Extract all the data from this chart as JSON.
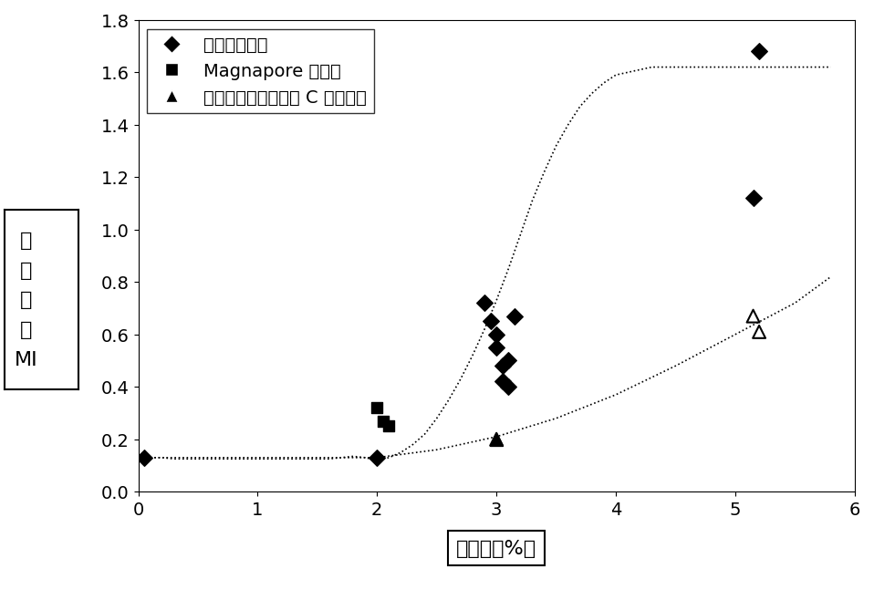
{
  "title": "",
  "xlabel": "钛含量（%）",
  "ylabel": "熔\n融\n指\n数\nMI",
  "xlim": [
    0,
    6
  ],
  "ylim": [
    0.0,
    1.8
  ],
  "yticks": [
    0.0,
    0.2,
    0.4,
    0.6,
    0.8,
    1.0,
    1.2,
    1.4,
    1.6,
    1.8
  ],
  "xticks": [
    0,
    1,
    2,
    3,
    4,
    5,
    6
  ],
  "series1_scatter_x": [
    0.05,
    2.0,
    2.9,
    2.95,
    3.0,
    3.0,
    3.05,
    3.05,
    3.1,
    3.1,
    3.15,
    5.2,
    5.15
  ],
  "series1_scatter_y": [
    0.13,
    0.13,
    0.72,
    0.65,
    0.6,
    0.55,
    0.48,
    0.42,
    0.4,
    0.5,
    0.67,
    1.68,
    1.12
  ],
  "series1_curve_x": [
    0.0,
    0.1,
    0.2,
    0.3,
    0.4,
    0.5,
    0.6,
    0.7,
    0.8,
    0.9,
    1.0,
    1.1,
    1.2,
    1.3,
    1.4,
    1.5,
    1.6,
    1.7,
    1.8,
    1.9,
    2.0,
    2.1,
    2.2,
    2.3,
    2.4,
    2.5,
    2.6,
    2.7,
    2.8,
    2.9,
    3.0,
    3.1,
    3.2,
    3.3,
    3.4,
    3.5,
    3.6,
    3.7,
    3.8,
    3.9,
    4.0,
    4.1,
    4.2,
    4.3,
    4.4,
    4.5,
    4.6,
    4.7,
    4.8,
    4.9,
    5.0,
    5.1,
    5.2,
    5.3,
    5.4,
    5.5,
    5.6,
    5.7,
    5.8
  ],
  "series1_curve_y": [
    0.13,
    0.13,
    0.13,
    0.125,
    0.125,
    0.125,
    0.125,
    0.125,
    0.125,
    0.125,
    0.125,
    0.125,
    0.125,
    0.125,
    0.125,
    0.125,
    0.125,
    0.13,
    0.135,
    0.13,
    0.12,
    0.13,
    0.15,
    0.18,
    0.22,
    0.28,
    0.35,
    0.43,
    0.52,
    0.62,
    0.73,
    0.85,
    0.98,
    1.11,
    1.22,
    1.32,
    1.4,
    1.47,
    1.52,
    1.56,
    1.59,
    1.6,
    1.61,
    1.62,
    1.62,
    1.62,
    1.62,
    1.62,
    1.62,
    1.62,
    1.62,
    1.62,
    1.62,
    1.62,
    1.62,
    1.62,
    1.62,
    1.62,
    1.62
  ],
  "series2_scatter_x": [
    2.0,
    2.05,
    2.1
  ],
  "series2_scatter_y": [
    0.32,
    0.27,
    0.25
  ],
  "series2_curve_x": [
    0.0,
    0.5,
    1.0,
    1.5,
    2.0,
    2.5,
    3.0,
    3.5,
    4.0,
    4.5,
    5.0,
    5.5,
    5.8
  ],
  "series2_curve_y": [
    0.13,
    0.13,
    0.13,
    0.13,
    0.13,
    0.16,
    0.21,
    0.28,
    0.37,
    0.48,
    0.6,
    0.72,
    0.82
  ],
  "series3_scatter_x": [
    3.0,
    5.15,
    5.2
  ],
  "series3_scatter_y": [
    0.2,
    0.67,
    0.61
  ],
  "background_color": "#ffffff",
  "curve1_color": "#000000",
  "curve2_color": "#000000",
  "scatter1_color": "#000000",
  "scatter2_color": "#000000",
  "scatter3_color": "#000000",
  "legend_labels": [
    "本发明催化剂",
    "Magnapore 催化剂",
    "采用低孔容载体硅胶 C 的催化剂"
  ],
  "ylabel_left_label": "熔\n融\n指\n数\nMI",
  "xlabel_bottom": "钛含量（%）",
  "fontsize_axis_label": 16,
  "fontsize_tick": 14,
  "fontsize_legend": 14
}
